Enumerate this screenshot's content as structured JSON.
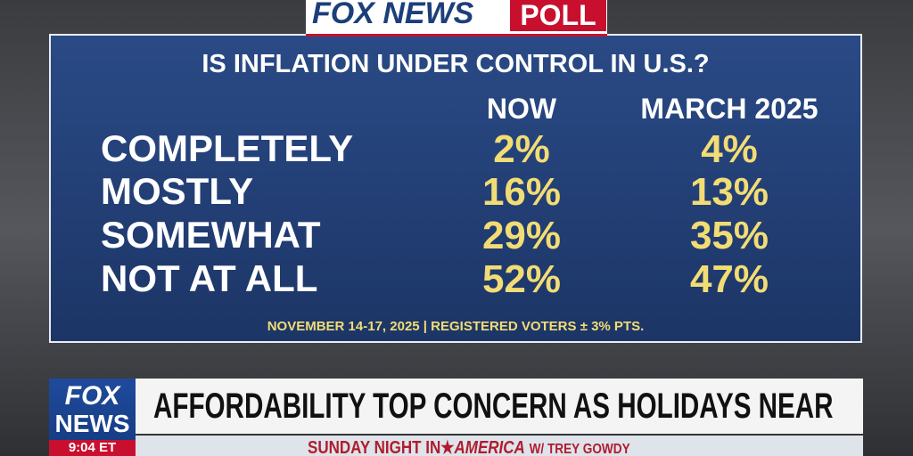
{
  "header": {
    "brand": "FOX NEWS",
    "tag": "POLL"
  },
  "poll": {
    "question": "IS INFLATION UNDER CONTROL IN U.S.?",
    "columns": [
      "NOW",
      "MARCH 2025"
    ],
    "rows": [
      {
        "label": "COMPLETELY",
        "values": [
          "2%",
          "4%"
        ]
      },
      {
        "label": "MOSTLY",
        "values": [
          "16%",
          "13%"
        ]
      },
      {
        "label": "SOMEWHAT",
        "values": [
          "29%",
          "35%"
        ]
      },
      {
        "label": "NOT AT ALL",
        "values": [
          "52%",
          "47%"
        ]
      }
    ],
    "footnote": "NOVEMBER 14-17, 2025 | REGISTERED VOTERS ± 3% PTS."
  },
  "lower_third": {
    "logo_top": "FOX",
    "logo_bottom": "NEWS",
    "time": "9:04 ET",
    "headline": "AFFORDABILITY TOP CONCERN AS HOLIDAYS NEAR",
    "show": {
      "part1": "SUNDAY NIGHT IN",
      "part2": "AMERICA",
      "host": "W/ TREY GOWDY"
    }
  }
}
